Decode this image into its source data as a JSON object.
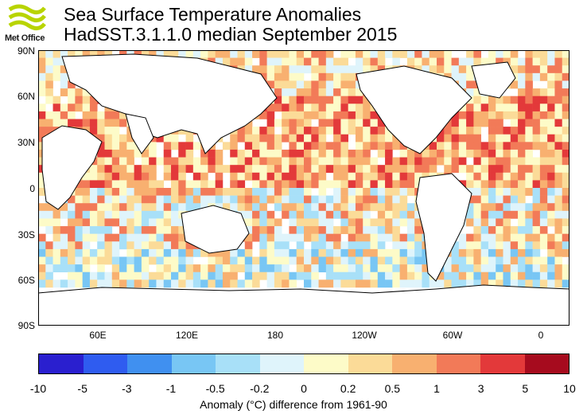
{
  "branding": {
    "logo_text": "Met Office",
    "logo_color": "#b8d400"
  },
  "title": "Sea Surface Temperature Anomalies",
  "subtitle": "HadSST.3.1.1.0 median September 2015",
  "map": {
    "lat_labels": [
      "90N",
      "60N",
      "30N",
      "0",
      "30S",
      "60S",
      "90S"
    ],
    "lon_labels": [
      "60E",
      "120E",
      "180",
      "120W",
      "60W",
      "0"
    ],
    "land_color": "#ffffff",
    "coastline_color": "#000000"
  },
  "colorbar": {
    "ticks": [
      "-10",
      "-5",
      "-3",
      "-1",
      "-0.5",
      "-0.2",
      "0",
      "0.2",
      "0.5",
      "1",
      "3",
      "5",
      "10"
    ],
    "colors": [
      "#2a1fcf",
      "#2f5cf0",
      "#4090f0",
      "#78c6f4",
      "#a8e0f8",
      "#dff4fb",
      "#fdfbc8",
      "#fbdb98",
      "#f8b070",
      "#f27a58",
      "#e3393a",
      "#a60b1e"
    ],
    "label": "Anomaly (°C) difference from 1961-90"
  }
}
